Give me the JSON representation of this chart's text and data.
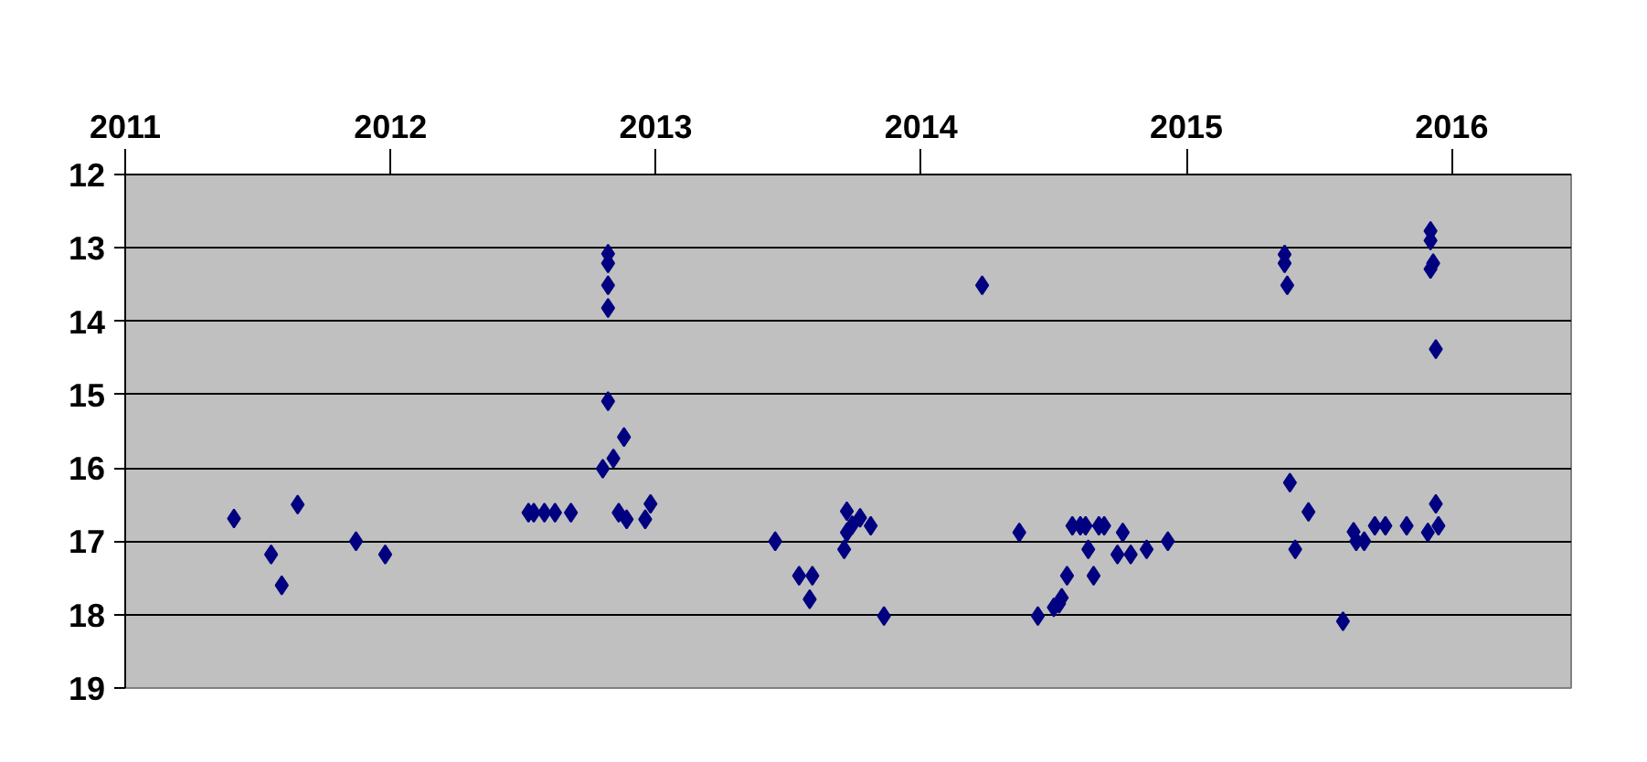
{
  "chart_data": {
    "type": "scatter",
    "marker": "diamond",
    "grid": "y",
    "xlim": [
      2011,
      2016.45
    ],
    "xticks": [
      2011,
      2012,
      2013,
      2014,
      2015,
      2016
    ],
    "ylim": [
      19,
      12
    ],
    "yticks": [
      12,
      13,
      14,
      15,
      16,
      17,
      18,
      19
    ],
    "series": [
      {
        "color": "#000080",
        "x": [
          2011.41,
          2011.55,
          2011.59,
          2011.65,
          2011.87,
          2011.98,
          2012.52,
          2012.54,
          2012.58,
          2012.62,
          2012.68,
          2012.82,
          2012.82,
          2012.82,
          2012.82,
          2012.82,
          2012.88,
          2012.84,
          2012.8,
          2012.86,
          2012.89,
          2012.96,
          2012.98,
          2013.45,
          2013.54,
          2013.59,
          2013.58,
          2013.72,
          2013.71,
          2013.72,
          2013.74,
          2013.77,
          2013.81,
          2013.86,
          2014.23,
          2014.37,
          2014.44,
          2014.5,
          2014.52,
          2014.53,
          2014.55,
          2014.57,
          2014.6,
          2014.62,
          2014.67,
          2014.69,
          2014.63,
          2014.65,
          2014.76,
          2014.74,
          2014.79,
          2014.85,
          2014.93,
          2015.37,
          2015.37,
          2015.38,
          2015.39,
          2015.46,
          2015.41,
          2015.59,
          2015.63,
          2015.64,
          2015.67,
          2015.71,
          2015.75,
          2015.83,
          2015.91,
          2015.95,
          2015.94,
          2015.94,
          2015.92,
          2015.92,
          2015.92,
          2015.93
        ],
        "values": [
          16.69,
          17.18,
          17.6,
          16.5,
          17.0,
          17.18,
          16.61,
          16.61,
          16.61,
          16.61,
          16.61,
          13.08,
          13.21,
          13.51,
          13.82,
          15.09,
          15.58,
          15.87,
          16.01,
          16.61,
          16.7,
          16.7,
          16.49,
          17.0,
          17.47,
          17.47,
          17.79,
          16.59,
          17.11,
          16.88,
          16.78,
          16.68,
          16.79,
          18.02,
          13.51,
          16.88,
          18.02,
          17.9,
          17.85,
          17.77,
          17.47,
          16.79,
          16.79,
          16.79,
          16.79,
          16.79,
          17.11,
          17.47,
          16.88,
          17.18,
          17.18,
          17.11,
          17.0,
          13.09,
          13.21,
          13.51,
          16.2,
          16.6,
          17.11,
          18.09,
          16.87,
          17.0,
          17.0,
          16.79,
          16.79,
          16.79,
          16.88,
          16.79,
          16.49,
          14.38,
          12.77,
          12.9,
          13.29,
          13.21
        ]
      }
    ]
  }
}
